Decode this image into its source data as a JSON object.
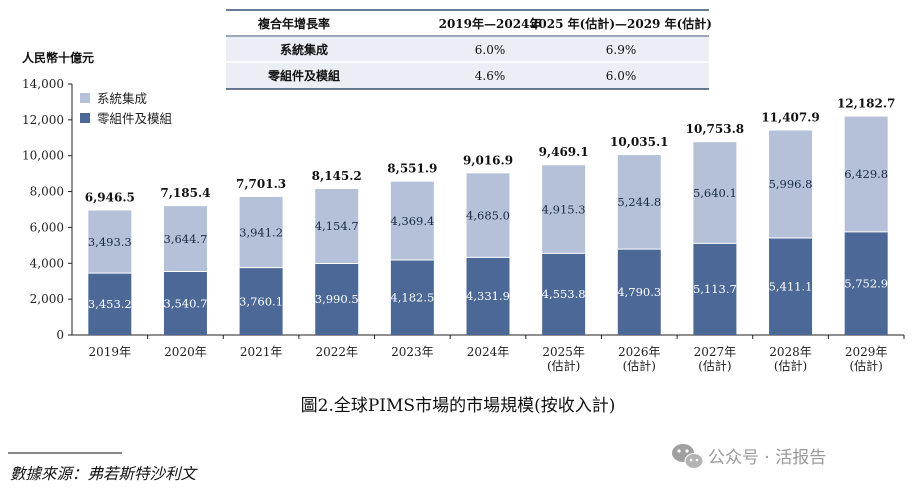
{
  "table": {
    "headers": [
      "複合年增長率",
      "2019年—2024年",
      "2025 年(估計)—2029 年(估計)"
    ],
    "rows": [
      [
        "系統集成",
        "6.0%",
        "6.9%"
      ],
      [
        "零組件及模組",
        "4.6%",
        "6.0%"
      ]
    ]
  },
  "caption": "圖2.全球PIMS市場的市場規模(按收入計)",
  "source": "數據來源：弗若斯特沙利文",
  "watermark": "公众号 · 活报告",
  "colors": {
    "top": "#b4c1d9",
    "bottom": "#4b6897"
  },
  "chart_data": {
    "type": "bar",
    "stacked": true,
    "ylabel": "人民幣十億元",
    "ylim": [
      0,
      14000
    ],
    "yticks": [
      "0",
      "2,000",
      "4,000",
      "6,000",
      "8,000",
      "10,000",
      "12,000",
      "14,000"
    ],
    "categories": [
      [
        "2019年"
      ],
      [
        "2020年"
      ],
      [
        "2021年"
      ],
      [
        "2022年"
      ],
      [
        "2023年"
      ],
      [
        "2024年"
      ],
      [
        "2025年",
        "(估計)"
      ],
      [
        "2026年",
        "(估計)"
      ],
      [
        "2027年",
        "(估計)"
      ],
      [
        "2028年",
        "(估計)"
      ],
      [
        "2029年",
        "(估計)"
      ]
    ],
    "series": [
      {
        "name": "零組件及模組",
        "color": "#4b6897",
        "values": [
          3453.2,
          3540.7,
          3760.1,
          3990.5,
          4182.5,
          4331.9,
          4553.8,
          4790.3,
          5113.7,
          5411.1,
          5752.9
        ],
        "labels": [
          "3,453.2",
          "3,540.7",
          "3,760.1",
          "3,990.5",
          "4,182.5",
          "4,331.9",
          "4,553.8",
          "4,790.3",
          "5,113.7",
          "5,411.1",
          "5,752.9"
        ]
      },
      {
        "name": "系統集成",
        "color": "#b4c1d9",
        "values": [
          3493.3,
          3644.7,
          3941.2,
          4154.7,
          4369.4,
          4685.0,
          4915.3,
          5244.8,
          5640.1,
          5996.8,
          6429.8
        ],
        "labels": [
          "3,493.3",
          "3,644.7",
          "3,941.2",
          "4,154.7",
          "4,369.4",
          "4,685.0",
          "4,915.3",
          "5,244.8",
          "5,640.1",
          "5,996.8",
          "6,429.8"
        ]
      }
    ],
    "totals": [
      6946.5,
      7185.4,
      7701.3,
      8145.2,
      8551.9,
      9016.9,
      9469.1,
      10035.1,
      10753.8,
      11407.9,
      12182.7
    ],
    "total_labels": [
      "6,946.5",
      "7,185.4",
      "7,701.3",
      "8,145.2",
      "8,551.9",
      "9,016.9",
      "9,469.1",
      "10,035.1",
      "10,753.8",
      "11,407.9",
      "12,182.7"
    ],
    "legend": [
      {
        "name": "系統集成",
        "color": "#b4c1d9"
      },
      {
        "name": "零組件及模組",
        "color": "#4b6897"
      }
    ],
    "legend_position": "top-left"
  }
}
